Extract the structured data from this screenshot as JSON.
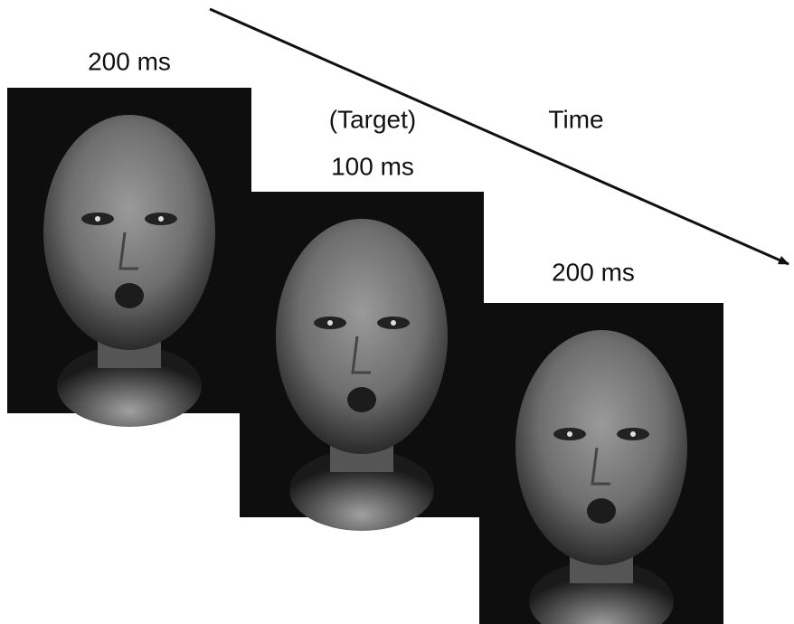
{
  "frames": [
    {
      "duration": "200 ms"
    },
    {
      "label": "(Target)",
      "duration": "100 ms"
    },
    {
      "duration": "200 ms"
    }
  ],
  "arrow": {
    "label": "Time"
  }
}
